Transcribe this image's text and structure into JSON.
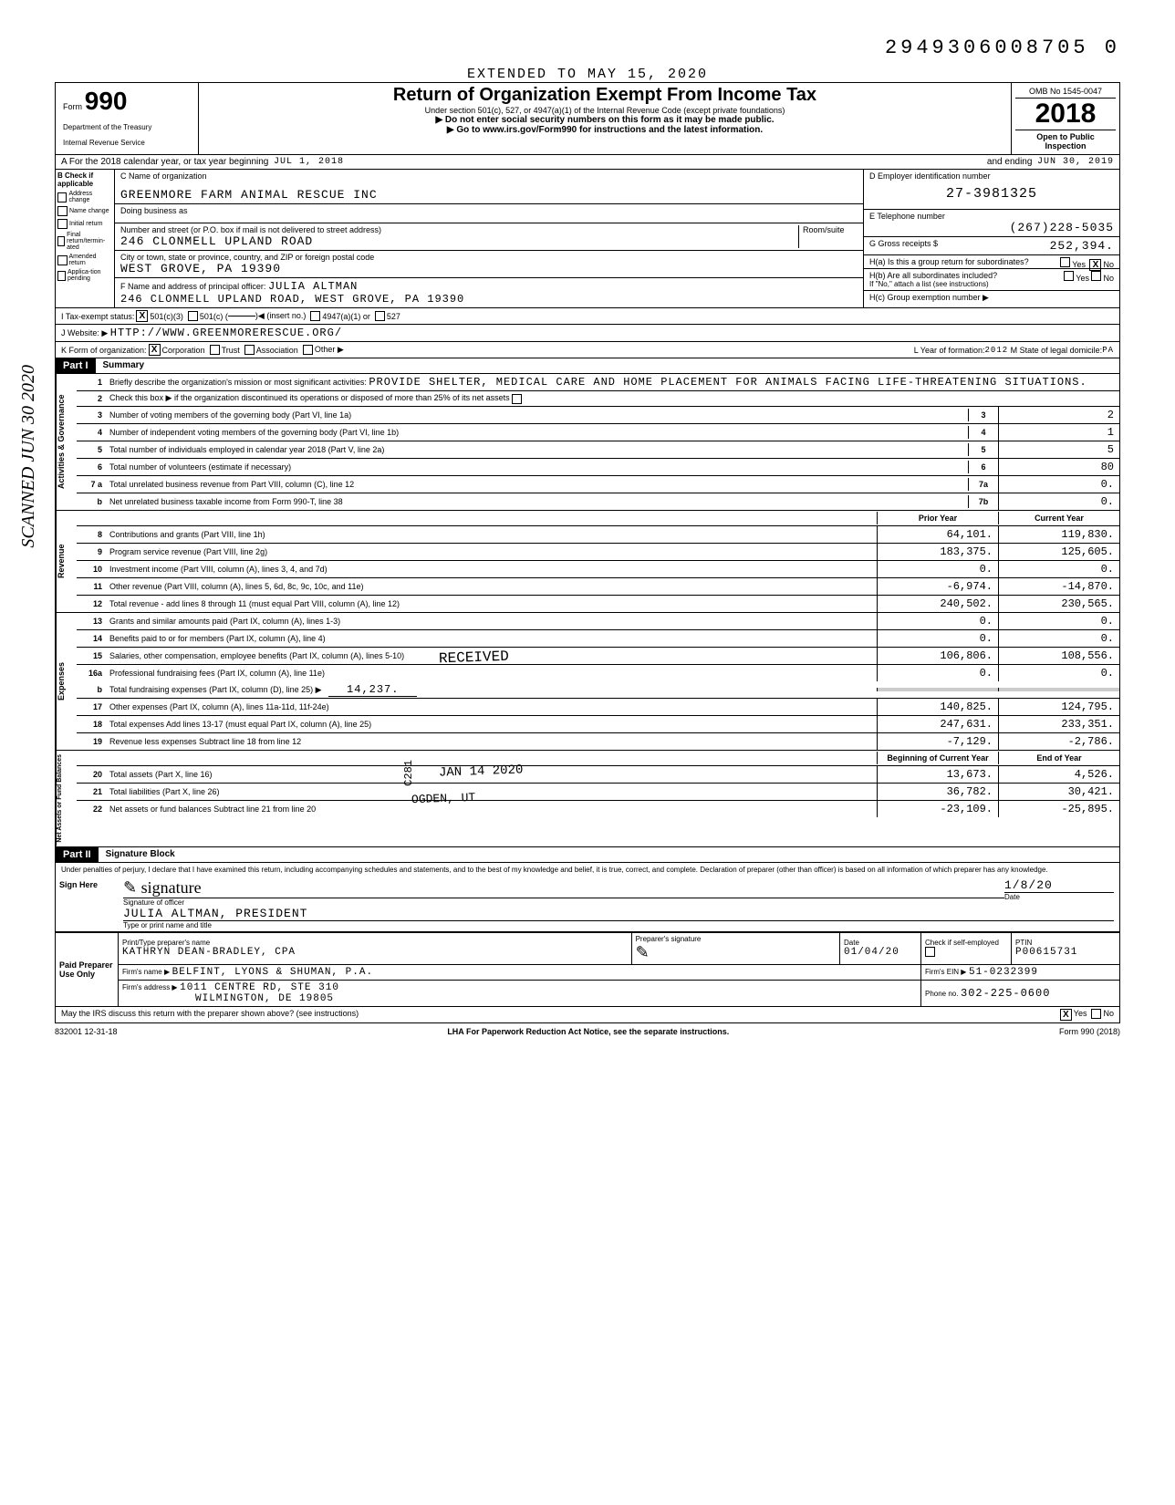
{
  "dln": "2949306008705 0",
  "extended": "EXTENDED TO MAY 15, 2020",
  "header": {
    "form_label": "Form",
    "form_number": "990",
    "dept": "Department of the Treasury",
    "irs": "Internal Revenue Service",
    "title": "Return of Organization Exempt From Income Tax",
    "subtitle": "Under section 501(c), 527, or 4947(a)(1) of the Internal Revenue Code (except private foundations)",
    "warn1": "▶ Do not enter social security numbers on this form as it may be made public.",
    "warn2": "▶ Go to www.irs.gov/Form990 for instructions and the latest information.",
    "omb": "OMB No  1545-0047",
    "year": "2018",
    "open": "Open to Public Inspection"
  },
  "row_a": {
    "label": "A  For the 2018 calendar year, or tax year beginning",
    "begin": "JUL 1, 2018",
    "mid": "and ending",
    "end": "JUN 30, 2019"
  },
  "b": {
    "header": "B  Check if applicable",
    "items": [
      "Address change",
      "Name change",
      "Initial return",
      "Final return/termin-ated",
      "Amended return",
      "Applica-tion pending"
    ]
  },
  "c": {
    "label": "C Name of organization",
    "name": "GREENMORE FARM ANIMAL RESCUE INC",
    "dba_label": "Doing business as",
    "street_label": "Number and street (or P.O. box if mail is not delivered to street address)",
    "room_label": "Room/suite",
    "street": "246 CLONMELL UPLAND ROAD",
    "city_label": "City or town, state or province, country, and ZIP or foreign postal code",
    "city": "WEST GROVE, PA  19390",
    "f_label": "F Name and address of principal officer:",
    "f_name": "JULIA ALTMAN",
    "f_addr": "246 CLONMELL UPLAND ROAD, WEST GROVE, PA 19390"
  },
  "d": {
    "label": "D  Employer identification number",
    "ein": "27-3981325"
  },
  "e": {
    "label": "E  Telephone number",
    "phone": "(267)228-5035"
  },
  "g": {
    "label": "G  Gross receipts $",
    "val": "252,394."
  },
  "h": {
    "a": "H(a) Is this a group return for subordinates?",
    "b": "H(b) Are all subordinates included?",
    "note": "If \"No,\" attach a list  (see instructions)",
    "c": "H(c) Group exemption number ▶"
  },
  "i": {
    "label": "I  Tax-exempt status:",
    "opt1": "501(c)(3)",
    "opt2": "501(c) (",
    "opt2b": ")◀ (insert no.)",
    "opt3": "4947(a)(1) or",
    "opt4": "527"
  },
  "j": {
    "label": "J  Website: ▶",
    "val": "HTTP://WWW.GREENMORERESCUE.ORG/"
  },
  "k": {
    "label": "K  Form of organization:",
    "corp": "Corporation",
    "trust": "Trust",
    "assoc": "Association",
    "other": "Other ▶"
  },
  "l": {
    "year_label": "L Year of formation:",
    "year": "2012",
    "state_label": "M State of legal domicile:",
    "state": "PA"
  },
  "part1": {
    "label": "Part I",
    "title": "Summary"
  },
  "summary": {
    "vtabs": [
      "Activities & Governance",
      "Revenue",
      "Expenses",
      "Net Assets or Fund Balances"
    ],
    "line1_label": "Briefly describe the organization's mission or most significant activities:",
    "line1_val": "PROVIDE SHELTER, MEDICAL CARE AND HOME PLACEMENT FOR ANIMALS FACING LIFE-THREATENING SITUATIONS.",
    "line2": "Check this box ▶        if the organization discontinued its operations or disposed of more than 25% of its net assets",
    "lines_gov": [
      {
        "n": "3",
        "d": "Number of voting members of the governing body (Part VI, line 1a)",
        "box": "3",
        "v": "2"
      },
      {
        "n": "4",
        "d": "Number of independent voting members of the governing body (Part VI, line 1b)",
        "box": "4",
        "v": "1"
      },
      {
        "n": "5",
        "d": "Total number of individuals employed in calendar year 2018 (Part V, line 2a)",
        "box": "5",
        "v": "5"
      },
      {
        "n": "6",
        "d": "Total number of volunteers (estimate if necessary)",
        "box": "6",
        "v": "80"
      },
      {
        "n": "7 a",
        "d": "Total unrelated business revenue from Part VIII, column (C), line 12",
        "box": "7a",
        "v": "0."
      },
      {
        "n": "b",
        "d": "Net unrelated business taxable income from Form 990-T, line 38",
        "box": "7b",
        "v": "0."
      }
    ],
    "col_prior": "Prior Year",
    "col_current": "Current Year",
    "lines_rev": [
      {
        "n": "8",
        "d": "Contributions and grants (Part VIII, line 1h)",
        "p": "64,101.",
        "c": "119,830."
      },
      {
        "n": "9",
        "d": "Program service revenue (Part VIII, line 2g)",
        "p": "183,375.",
        "c": "125,605."
      },
      {
        "n": "10",
        "d": "Investment income (Part VIII, column (A), lines 3, 4, and 7d)",
        "p": "0.",
        "c": "0."
      },
      {
        "n": "11",
        "d": "Other revenue (Part VIII, column (A), lines 5, 6d, 8c, 9c, 10c, and 11e)",
        "p": "-6,974.",
        "c": "-14,870."
      },
      {
        "n": "12",
        "d": "Total revenue - add lines 8 through 11 (must equal Part VIII, column (A), line 12)",
        "p": "240,502.",
        "c": "230,565."
      }
    ],
    "lines_exp": [
      {
        "n": "13",
        "d": "Grants and similar amounts paid (Part IX, column (A), lines 1-3)",
        "p": "0.",
        "c": "0."
      },
      {
        "n": "14",
        "d": "Benefits paid to or for members (Part IX, column (A), line 4)",
        "p": "0.",
        "c": "0."
      },
      {
        "n": "15",
        "d": "Salaries, other compensation, employee benefits (Part IX, column (A), lines 5-10)",
        "p": "106,806.",
        "c": "108,556."
      },
      {
        "n": "16a",
        "d": "Professional fundraising fees (Part IX, column (A), line 11e)",
        "p": "0.",
        "c": "0."
      }
    ],
    "line16b_d": "Total fundraising expenses (Part IX, column (D), line 25)  ▶",
    "line16b_v": "14,237.",
    "lines_exp2": [
      {
        "n": "17",
        "d": "Other expenses (Part IX, column (A), lines 11a-11d, 11f-24e)",
        "p": "140,825.",
        "c": "124,795."
      },
      {
        "n": "18",
        "d": "Total expenses  Add lines 13-17 (must equal Part IX, column (A), line 25)",
        "p": "247,631.",
        "c": "233,351."
      },
      {
        "n": "19",
        "d": "Revenue less expenses  Subtract line 18 from line 12",
        "p": "-7,129.",
        "c": "-2,786."
      }
    ],
    "col_begin": "Beginning of Current Year",
    "col_end": "End of Year",
    "lines_net": [
      {
        "n": "20",
        "d": "Total assets (Part X, line 16)",
        "p": "13,673.",
        "c": "4,526."
      },
      {
        "n": "21",
        "d": "Total liabilities (Part X, line 26)",
        "p": "36,782.",
        "c": "30,421."
      },
      {
        "n": "22",
        "d": "Net assets or fund balances  Subtract line 21 from line 20",
        "p": "-23,109.",
        "c": "-25,895."
      }
    ]
  },
  "stamps": {
    "received": "RECEIVED",
    "date": "JAN 14 2020",
    "ogden": "OGDEN, UT",
    "c281": "C281",
    "scanned": "SCANNED  JUN 30 2020"
  },
  "part2": {
    "label": "Part II",
    "title": "Signature Block",
    "perjury": "Under penalties of perjury, I declare that I have examined this return, including accompanying schedules and statements, and to the best of my knowledge and belief, it is true, correct, and complete. Declaration of preparer (other than officer) is based on all information of which preparer has any knowledge."
  },
  "sign": {
    "here": "Sign Here",
    "sig_label": "Signature of officer",
    "date_label": "Date",
    "date": "1/8/20",
    "name": "JULIA ALTMAN, PRESIDENT",
    "name_label": "Type or print name and title"
  },
  "paid": {
    "label": "Paid Preparer Use Only",
    "prep_name_label": "Print/Type preparer's name",
    "prep_name": "KATHRYN DEAN-BRADLEY, CPA",
    "prep_sig_label": "Preparer's signature",
    "date_label": "Date",
    "date": "01/04/20",
    "check_label": "Check        if self-employed",
    "ptin_label": "PTIN",
    "ptin": "P00615731",
    "firm_name_label": "Firm's name    ▶",
    "firm_name": "BELFINT, LYONS & SHUMAN, P.A.",
    "firm_ein_label": "Firm's EIN ▶",
    "firm_ein": "51-0232399",
    "firm_addr_label": "Firm's address ▶",
    "firm_addr1": "1011 CENTRE RD, STE 310",
    "firm_addr2": "WILMINGTON, DE 19805",
    "phone_label": "Phone no.",
    "phone": "302-225-0600"
  },
  "discuss": {
    "q": "May the IRS discuss this return with the preparer shown above? (see instructions)",
    "yes": "Yes",
    "no": "No"
  },
  "footer": {
    "code": "832001  12-31-18",
    "lha": "LHA  For Paperwork Reduction Act Notice, see the separate instructions.",
    "form": "Form 990 (2018)"
  }
}
